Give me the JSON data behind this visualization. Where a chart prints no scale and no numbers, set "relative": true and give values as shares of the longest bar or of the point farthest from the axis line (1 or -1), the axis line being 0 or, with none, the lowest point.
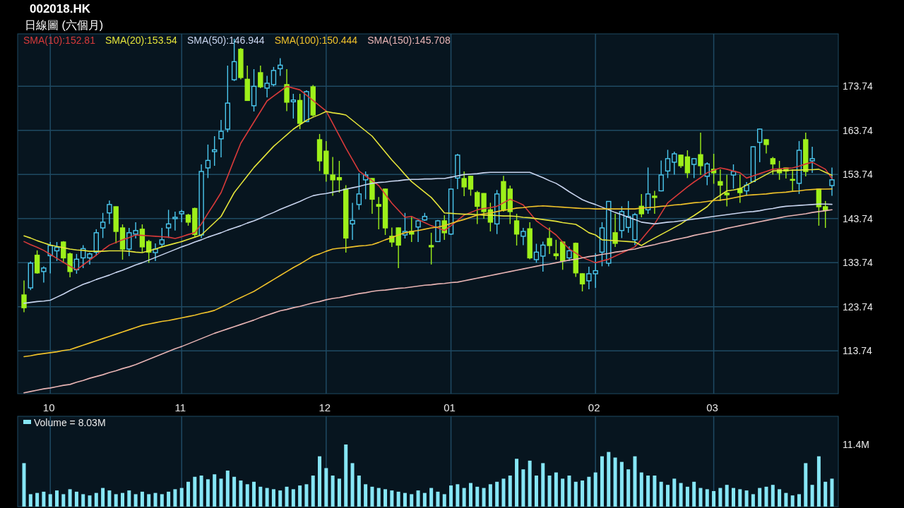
{
  "chart_data": [
    {
      "type": "candlestick",
      "title": "002018.HK",
      "subtitle": "日線圖 (六個月)",
      "categories": [
        null,
        null,
        null,
        null,
        "10",
        null,
        null,
        null,
        null,
        null,
        null,
        null,
        null,
        null,
        null,
        null,
        null,
        null,
        null,
        null,
        null,
        null,
        null,
        null,
        "11",
        null,
        null,
        null,
        null,
        null,
        null,
        null,
        null,
        null,
        null,
        null,
        null,
        null,
        null,
        null,
        null,
        null,
        null,
        null,
        null,
        null,
        "12",
        null,
        null,
        null,
        null,
        null,
        null,
        null,
        null,
        null,
        null,
        null,
        null,
        null,
        null,
        null,
        null,
        null,
        null,
        "01",
        null,
        null,
        null,
        null,
        null,
        null,
        null,
        null,
        null,
        null,
        null,
        null,
        null,
        null,
        null,
        null,
        null,
        null,
        null,
        null,
        null,
        "02",
        null,
        null,
        null,
        null,
        null,
        null,
        null,
        null,
        null,
        null,
        null,
        null,
        null,
        null,
        null,
        null,
        null,
        "03",
        null,
        null,
        null,
        null,
        null,
        null,
        null,
        null,
        null,
        null,
        null,
        null,
        null,
        null,
        null,
        null,
        null,
        null
      ],
      "ohlc": [
        [
          126.4,
          129.7,
          122.5,
          123.5
        ],
        [
          128,
          134,
          127.5,
          133.6
        ],
        [
          135.4,
          136.5,
          131.2,
          131.4
        ],
        [
          131.7,
          132.9,
          129.2,
          132.5
        ],
        [
          135.3,
          138.4,
          131.3,
          137.6
        ],
        [
          136.4,
          138.4,
          134.1,
          137.2
        ],
        [
          138.4,
          138.6,
          133.6,
          134.8
        ],
        [
          135.7,
          136,
          130.4,
          131.7
        ],
        [
          132.1,
          135.7,
          131.2,
          134.5
        ],
        [
          134.8,
          137.7,
          132.5,
          136.9
        ],
        [
          134.8,
          136,
          133.3,
          135.7
        ],
        [
          136.1,
          141.3,
          135.3,
          140.5
        ],
        [
          141.6,
          145,
          139.3,
          142.9
        ],
        [
          145,
          147.8,
          142.5,
          146.9
        ],
        [
          146.4,
          146.5,
          138.1,
          140.8
        ],
        [
          141.6,
          142.4,
          134.4,
          136.8
        ],
        [
          136.8,
          141.6,
          135.2,
          140.5
        ],
        [
          140.2,
          142.9,
          139.2,
          141
        ],
        [
          141.3,
          142.4,
          136.1,
          137.3
        ],
        [
          138.5,
          138.9,
          133.7,
          136.1
        ],
        [
          136,
          138.1,
          134.1,
          136.8
        ],
        [
          137.9,
          141.6,
          137.3,
          138.9
        ],
        [
          141.6,
          145.7,
          139.3,
          142.5
        ],
        [
          143.7,
          145.3,
          141,
          144
        ],
        [
          144.8,
          145.7,
          142.9,
          145.3
        ],
        [
          144.5,
          144.8,
          142.1,
          142.9
        ],
        [
          146,
          146.2,
          139.7,
          140.1
        ],
        [
          140,
          156,
          139.3,
          154.4
        ],
        [
          155.2,
          160.5,
          152.9,
          156.9
        ],
        [
          158.9,
          162.4,
          155.7,
          159.3
        ],
        [
          161.8,
          166.1,
          157.6,
          163.5
        ],
        [
          164,
          178.4,
          163.3,
          169.9
        ],
        [
          175.2,
          184.5,
          174.9,
          179.3
        ],
        [
          182.1,
          182.4,
          175.3,
          175.7
        ],
        [
          175.3,
          178.4,
          170.4,
          170.5
        ],
        [
          169.3,
          177.6,
          168,
          173.7
        ],
        [
          176.8,
          178.4,
          173.3,
          173.6
        ],
        [
          173.3,
          176.1,
          171.2,
          174.4
        ],
        [
          174.1,
          178.1,
          173.7,
          177.3
        ],
        [
          177.7,
          180.1,
          176.1,
          178.5
        ],
        [
          174.1,
          177.6,
          168.1,
          170.1
        ],
        [
          170.2,
          172,
          166.4,
          170.6
        ],
        [
          170.5,
          172,
          164,
          165.3
        ],
        [
          165.7,
          172.8,
          165.6,
          172.5
        ],
        [
          173.6,
          174,
          166.9,
          167.2
        ],
        [
          161.6,
          162.9,
          154.5,
          156.8
        ],
        [
          159,
          161.3,
          152.1,
          153.9
        ],
        [
          153.6,
          157.7,
          148.9,
          152.5
        ],
        [
          153,
          156.8,
          149.6,
          152.5
        ],
        [
          150.4,
          151.3,
          136,
          139.3
        ],
        [
          142.5,
          147.3,
          138.9,
          143.3
        ],
        [
          146.9,
          154,
          145.7,
          149.3
        ],
        [
          152.5,
          154.4,
          148.1,
          153.6
        ],
        [
          152.8,
          152.9,
          144.8,
          148.1
        ],
        [
          146.9,
          148.6,
          141.3,
          146.5
        ],
        [
          150.4,
          150.5,
          140,
          141.6
        ],
        [
          139.7,
          141.7,
          137.3,
          138.4
        ],
        [
          141.6,
          141.7,
          132.5,
          137.7
        ],
        [
          140,
          145,
          139.2,
          140.8
        ],
        [
          140.8,
          144.2,
          138.4,
          140.2
        ],
        [
          141.8,
          143.4,
          138.4,
          143.2
        ],
        [
          143.4,
          145,
          143.2,
          144.2
        ],
        [
          137.6,
          140.5,
          133.3,
          137.3
        ],
        [
          138.5,
          143.4,
          138.4,
          143.2
        ],
        [
          143.2,
          144.5,
          138.9,
          140.5
        ],
        [
          140.2,
          150.5,
          140,
          150.4
        ],
        [
          152.9,
          158.4,
          150.4,
          158.1
        ],
        [
          152.8,
          154.4,
          148.8,
          150.9
        ],
        [
          153.3,
          153.4,
          148.9,
          150.4
        ],
        [
          149.6,
          150,
          142.5,
          146.5
        ],
        [
          149.4,
          149.5,
          143.7,
          145.3
        ],
        [
          145.7,
          147.3,
          140.8,
          142.9
        ],
        [
          142.5,
          150.2,
          140.2,
          149.3
        ],
        [
          152.1,
          153.4,
          145.3,
          145.6
        ],
        [
          150.4,
          151.2,
          142.5,
          145.3
        ],
        [
          143.2,
          144.8,
          137.6,
          140.2
        ],
        [
          139.7,
          141.6,
          137.7,
          140.8
        ],
        [
          141.4,
          142.9,
          134.5,
          134.8
        ],
        [
          134.4,
          138,
          133.7,
          136.1
        ],
        [
          135.2,
          138.5,
          131.7,
          137.7
        ],
        [
          139.2,
          141.7,
          135.7,
          137.6
        ],
        [
          135.7,
          138.9,
          134.4,
          135.3
        ],
        [
          138.4,
          138.5,
          132.1,
          134.1
        ],
        [
          134.8,
          137.4,
          134.1,
          136.4
        ],
        [
          138.1,
          138.3,
          130.5,
          131.4
        ],
        [
          131.2,
          131.3,
          127.2,
          128.9
        ],
        [
          129.6,
          132.8,
          127.7,
          131.2
        ],
        [
          131.2,
          135.9,
          128,
          131.9
        ],
        [
          136.1,
          142.9,
          132.9,
          141.6
        ],
        [
          133.6,
          147.7,
          132.9,
          147.6
        ],
        [
          140.5,
          144.8,
          137.3,
          138.1
        ],
        [
          141,
          146.5,
          139.3,
          145.3
        ],
        [
          141.7,
          147.7,
          140.5,
          144.2
        ],
        [
          138.9,
          145,
          137.7,
          144.6
        ],
        [
          146.5,
          149.3,
          144,
          144.8
        ],
        [
          145.7,
          155.3,
          144.8,
          149.3
        ],
        [
          148.8,
          150,
          144.8,
          148.5
        ],
        [
          150,
          156.9,
          149.9,
          153.6
        ],
        [
          154.5,
          159.3,
          152.9,
          157.3
        ],
        [
          156.5,
          158.9,
          153.7,
          158.4
        ],
        [
          158.1,
          158.2,
          155.2,
          155.7
        ],
        [
          157.7,
          159.2,
          152.9,
          154.1
        ],
        [
          156,
          157.4,
          152.9,
          157.3
        ],
        [
          158.2,
          163.2,
          153.6,
          155.7
        ],
        [
          153.3,
          156.5,
          151.3,
          156.1
        ],
        [
          154.9,
          158.4,
          151.6,
          154.1
        ],
        [
          152.1,
          154.9,
          147.7,
          151.3
        ],
        [
          149.5,
          153.7,
          146.5,
          149.1
        ],
        [
          153.6,
          156,
          150.5,
          154.4
        ],
        [
          150.5,
          153.7,
          147.3,
          149.6
        ],
        [
          150,
          152,
          148.9,
          151.3
        ],
        [
          152.1,
          160.1,
          152,
          160
        ],
        [
          161,
          164.1,
          156.5,
          164
        ],
        [
          161.6,
          161.7,
          158.5,
          160.5
        ],
        [
          157.3,
          157.7,
          153.7,
          156.1
        ],
        [
          154.9,
          156.8,
          152.5,
          154.1
        ],
        [
          155.2,
          155.3,
          152.8,
          154.5
        ],
        [
          152.6,
          154.9,
          150,
          152.4
        ],
        [
          151.7,
          161.3,
          149.3,
          159.2
        ],
        [
          161.6,
          163.2,
          153.3,
          154.4
        ],
        [
          156.8,
          160,
          154.1,
          157.3
        ],
        [
          150.4,
          150.5,
          142.1,
          146.4
        ],
        [
          146.4,
          147.7,
          141.6,
          145.6
        ],
        [
          151.2,
          155.3,
          148.9,
          152.5
        ]
      ],
      "colors": [
        "#9ef01a",
        "#4cc9f0",
        "#9ef01a",
        "#4cc9f0",
        "#4cc9f0",
        "#4cc9f0",
        "#9ef01a",
        "#9ef01a",
        "#4cc9f0",
        "#4cc9f0",
        "#4cc9f0",
        "#4cc9f0",
        "#4cc9f0",
        "#4cc9f0",
        "#9ef01a",
        "#9ef01a",
        "#4cc9f0",
        "#4cc9f0",
        "#9ef01a",
        "#9ef01a",
        "#4cc9f0",
        "#4cc9f0",
        "#4cc9f0",
        "#4cc9f0",
        "#4cc9f0",
        "#9ef01a",
        "#9ef01a",
        "#4cc9f0",
        "#4cc9f0",
        "#4cc9f0",
        "#4cc9f0",
        "#4cc9f0",
        "#4cc9f0",
        "#9ef01a",
        "#9ef01a",
        "#4cc9f0",
        "#9ef01a",
        "#4cc9f0",
        "#4cc9f0",
        "#4cc9f0",
        "#9ef01a",
        "#4cc9f0",
        "#9ef01a",
        "#4cc9f0",
        "#9ef01a",
        "#9ef01a",
        "#9ef01a",
        "#9ef01a",
        "#9ef01a",
        "#9ef01a",
        "#4cc9f0",
        "#4cc9f0",
        "#4cc9f0",
        "#9ef01a",
        "#9ef01a",
        "#9ef01a",
        "#9ef01a",
        "#9ef01a",
        "#4cc9f0",
        "#9ef01a",
        "#4cc9f0",
        "#4cc9f0",
        "#9ef01a",
        "#4cc9f0",
        "#9ef01a",
        "#4cc9f0",
        "#4cc9f0",
        "#9ef01a",
        "#9ef01a",
        "#9ef01a",
        "#9ef01a",
        "#9ef01a",
        "#4cc9f0",
        "#9ef01a",
        "#9ef01a",
        "#9ef01a",
        "#4cc9f0",
        "#9ef01a",
        "#4cc9f0",
        "#4cc9f0",
        "#9ef01a",
        "#9ef01a",
        "#9ef01a",
        "#4cc9f0",
        "#9ef01a",
        "#9ef01a",
        "#4cc9f0",
        "#4cc9f0",
        "#4cc9f0",
        "#4cc9f0",
        "#9ef01a",
        "#4cc9f0",
        "#4cc9f0",
        "#4cc9f0",
        "#9ef01a",
        "#4cc9f0",
        "#9ef01a",
        "#4cc9f0",
        "#4cc9f0",
        "#4cc9f0",
        "#9ef01a",
        "#9ef01a",
        "#4cc9f0",
        "#9ef01a",
        "#4cc9f0",
        "#9ef01a",
        "#9ef01a",
        "#9ef01a",
        "#4cc9f0",
        "#9ef01a",
        "#4cc9f0",
        "#4cc9f0",
        "#4cc9f0",
        "#9ef01a",
        "#9ef01a",
        "#9ef01a",
        "#9ef01a",
        "#9ef01a",
        "#4cc9f0",
        "#9ef01a",
        "#4cc9f0",
        "#9ef01a",
        "#9ef01a",
        "#4cc9f0"
      ],
      "series": [
        {
          "name": "SMA(10):152.81",
          "type": "line",
          "color": "#d83a3a",
          "values": [
            138.5,
            137.8,
            137.2,
            136.5,
            135.6,
            134.7,
            133.8,
            132.9,
            132.1,
            133.2,
            134.3,
            135.4,
            136.6,
            137.7,
            138.3,
            138.9,
            139.4,
            140,
            139.9,
            139.8,
            139.7,
            139.6,
            139.5,
            139.2,
            139.6,
            140.1,
            140.5,
            142.5,
            144.9,
            147.2,
            149.6,
            153.3,
            157.1,
            160.8,
            163.2,
            165.6,
            168,
            170.4,
            171.5,
            172.6,
            173.7,
            173.3,
            172.9,
            171.7,
            170.5,
            169.3,
            168.1,
            165.3,
            162.5,
            159.7,
            157.1,
            154.5,
            153.4,
            152.3,
            151.2,
            149.2,
            147.2,
            145.6,
            144,
            144.2,
            143.5,
            142.8,
            142.1,
            141.6,
            141,
            142.1,
            143.3,
            144.5,
            145.1,
            145.7,
            146,
            146.2,
            146.5,
            147.3,
            148.1,
            147.5,
            146.8,
            145,
            143.2,
            142.1,
            141.1,
            140,
            138.4,
            136.8,
            135.9,
            134.9,
            134.3,
            133.7,
            134.1,
            134.5,
            135.2,
            135.9,
            136.6,
            137.3,
            139,
            140.8,
            142.5,
            144.9,
            147.3,
            148.5,
            149.7,
            150.9,
            152,
            153,
            154.1,
            154.7,
            155.2,
            154.9,
            154.5,
            154.1,
            152.9,
            153.4,
            153.9,
            154.4,
            154.9,
            155,
            155.1,
            155.2,
            155.6,
            156.1,
            156.5,
            155.7,
            154.9,
            152.81
          ]
        },
        {
          "name": "SMA(20):153.54",
          "type": "line",
          "color": "#e4e43a",
          "values": [
            139.8,
            139.3,
            138.7,
            138.2,
            137.7,
            137.4,
            137.1,
            136.8,
            136.6,
            136.5,
            136.3,
            136.3,
            136.3,
            136.4,
            136.4,
            136.4,
            136.3,
            136.1,
            136,
            136.4,
            136.8,
            137.3,
            137.7,
            138.1,
            138.5,
            139,
            139.5,
            140,
            141.4,
            142.8,
            144.2,
            146.9,
            149.6,
            151.5,
            153.4,
            155.3,
            156.9,
            158.5,
            160.1,
            161.4,
            162.7,
            164,
            165,
            166,
            166.7,
            167.3,
            168,
            167.7,
            167.5,
            167.2,
            166,
            164.8,
            163.6,
            162.4,
            160.6,
            158.8,
            157,
            155.4,
            153.7,
            152.1,
            150.9,
            149.7,
            148.5,
            146.8,
            145,
            144.9,
            144.8,
            144.7,
            144.7,
            144.6,
            144.5,
            144.5,
            144.4,
            144.3,
            144.3,
            144.2,
            144,
            143.9,
            143.7,
            143.5,
            143.3,
            143.1,
            142.8,
            142.6,
            142.4,
            141.5,
            140.5,
            140,
            138.9,
            138.8,
            138.7,
            138.6,
            138.5,
            138.4,
            137.6,
            138.5,
            139.3,
            140.1,
            140.9,
            141.7,
            142.5,
            143.5,
            144.4,
            145.4,
            146.4,
            148,
            149,
            150,
            150.2,
            150.5,
            151.3,
            152.1,
            152.9,
            153.7,
            154.5,
            154.6,
            154.6,
            154.7,
            154.7,
            154.8,
            154.8,
            154.9,
            154.2,
            153.54
          ]
        },
        {
          "name": "SMA(50):146.944",
          "type": "line",
          "color": "#c8d4ee",
          "values": [
            124.5,
            124.7,
            124.9,
            125,
            125.2,
            125.9,
            126.6,
            127.4,
            128.1,
            128.8,
            129.3,
            129.9,
            130.4,
            130.9,
            131.5,
            132,
            132.6,
            133.2,
            133.7,
            134.3,
            134.9,
            135.5,
            136.1,
            136.7,
            137.3,
            137.8,
            138.4,
            138.9,
            139.5,
            140,
            140.5,
            141.1,
            141.6,
            142.1,
            142.7,
            143.2,
            143.8,
            144.5,
            145.1,
            145.8,
            146.4,
            147,
            147.6,
            148.3,
            148.9,
            149.2,
            149.4,
            149.7,
            150,
            150.4,
            150.7,
            151,
            151.4,
            151.7,
            151.9,
            152,
            152.2,
            152.3,
            152.5,
            152.6,
            152.6,
            152.7,
            152.7,
            152.8,
            152.8,
            153.1,
            153.4,
            153.7,
            153.8,
            153.9,
            154.1,
            154.2,
            154.2,
            154.2,
            154.2,
            154.2,
            154.2,
            154.2,
            153.6,
            153,
            152.3,
            151.7,
            150.8,
            149.8,
            148.9,
            148,
            147.4,
            146.9,
            146.3,
            145.7,
            145.1,
            144.6,
            144,
            143.5,
            142.9,
            142.7,
            142.5,
            142.7,
            142.9,
            143,
            143.2,
            143.4,
            143.6,
            143.8,
            144,
            144.2,
            144.4,
            144.6,
            144.8,
            145,
            145.2,
            145.3,
            145.5,
            145.8,
            146,
            146.3,
            146.5,
            146.6,
            146.7,
            146.8,
            146.9,
            147,
            147,
            146.944
          ]
        },
        {
          "name": "SMA(100):150.444",
          "type": "line",
          "color": "#f0c22a",
          "values": [
            112.4,
            112.6,
            112.9,
            113.1,
            113.3,
            113.5,
            113.8,
            114,
            114.5,
            115,
            115.5,
            116,
            116.5,
            117,
            117.5,
            118,
            118.5,
            119,
            119.5,
            119.8,
            120.1,
            120.4,
            120.6,
            120.9,
            121.2,
            121.5,
            121.8,
            122.2,
            122.5,
            122.9,
            123.6,
            124.3,
            125.1,
            125.8,
            126.5,
            127.2,
            128.1,
            129,
            129.9,
            130.8,
            131.7,
            132.6,
            133.4,
            134.3,
            135.2,
            135.7,
            136.3,
            136.8,
            137,
            137.1,
            137.3,
            137.5,
            137.6,
            137.8,
            138.3,
            138.9,
            139.4,
            140,
            140.5,
            140.8,
            141,
            141.3,
            141.6,
            141.8,
            142.1,
            142.6,
            143.1,
            143.5,
            144,
            144.5,
            144.8,
            145,
            145.3,
            145.6,
            145.8,
            146.1,
            146.2,
            146.4,
            146.5,
            146.6,
            146.5,
            146.4,
            146.3,
            146.2,
            146.1,
            146,
            146,
            145.9,
            145.9,
            145.9,
            145.9,
            145.9,
            145.9,
            145.9,
            146.1,
            146.2,
            146.3,
            146.5,
            146.6,
            146.8,
            146.9,
            147.1,
            147.3,
            147.4,
            147.6,
            147.8,
            147.9,
            148.1,
            148.4,
            148.7,
            149,
            149.1,
            149.2,
            149.3,
            149.5,
            149.6,
            149.7,
            149.9,
            150,
            150.2,
            150.3,
            150.4,
            150.4,
            150.444
          ]
        },
        {
          "name": "SMA(150):145.708",
          "type": "line",
          "color": "#e8b4b4",
          "values": [
            104.2,
            104.5,
            104.8,
            105.1,
            105.3,
            105.6,
            105.9,
            106.1,
            106.6,
            107,
            107.5,
            107.9,
            108.3,
            108.8,
            109.2,
            109.7,
            110.1,
            110.6,
            111.2,
            111.8,
            112.4,
            113,
            113.6,
            114.2,
            114.7,
            115.3,
            115.9,
            116.5,
            117.1,
            117.7,
            118.2,
            118.7,
            119.2,
            119.7,
            120.2,
            120.7,
            121.3,
            121.8,
            122.3,
            122.8,
            123.1,
            123.5,
            123.8,
            124.2,
            124.6,
            124.9,
            125.3,
            125.6,
            125.8,
            126.1,
            126.4,
            126.7,
            126.9,
            127.2,
            127.4,
            127.5,
            127.7,
            127.9,
            128,
            128.2,
            128.4,
            128.6,
            128.7,
            128.9,
            129,
            129.2,
            129.3,
            129.6,
            129.9,
            130.2,
            130.5,
            130.8,
            131.1,
            131.4,
            131.7,
            132,
            132.3,
            132.6,
            132.9,
            133.2,
            133.4,
            133.7,
            134,
            134.3,
            134.5,
            134.8,
            135.1,
            135.3,
            135.6,
            135.8,
            136.1,
            136.3,
            136.6,
            136.8,
            137.2,
            137.5,
            137.8,
            138.2,
            138.5,
            138.9,
            139.2,
            139.5,
            139.9,
            140.2,
            140.5,
            140.8,
            141.1,
            141.5,
            141.8,
            142.1,
            142.4,
            142.7,
            143,
            143.3,
            143.6,
            143.9,
            144.2,
            144.4,
            144.6,
            144.8,
            145.1,
            145.3,
            145.5,
            145.708
          ]
        }
      ],
      "ylim": [
        104,
        185.6
      ],
      "yticks": [
        113.74,
        123.74,
        133.74,
        143.74,
        153.74,
        163.74,
        173.74
      ],
      "grid": true,
      "legend": "top left"
    },
    {
      "type": "bar",
      "relative": true,
      "tick_labels": false,
      "grid": "x",
      "legend": "top left",
      "annotations": [
        "11.4M"
      ],
      "categories": [
        null,
        null,
        null,
        null,
        "10",
        null,
        null,
        null,
        null,
        null,
        null,
        null,
        null,
        null,
        null,
        null,
        null,
        null,
        null,
        null,
        null,
        null,
        null,
        null,
        "11",
        null,
        null,
        null,
        null,
        null,
        null,
        null,
        null,
        null,
        null,
        null,
        null,
        null,
        null,
        null,
        null,
        null,
        null,
        null,
        null,
        null,
        "12",
        null,
        null,
        null,
        null,
        null,
        null,
        null,
        null,
        null,
        null,
        null,
        null,
        null,
        null,
        null,
        null,
        null,
        null,
        "01",
        null,
        null,
        null,
        null,
        null,
        null,
        null,
        null,
        null,
        null,
        null,
        null,
        null,
        null,
        null,
        null,
        null,
        null,
        null,
        null,
        null,
        "02",
        null,
        null,
        null,
        null,
        null,
        null,
        null,
        null,
        null,
        null,
        null,
        null,
        null,
        null,
        null,
        null,
        null,
        "03",
        null,
        null,
        null,
        null,
        null,
        null,
        null,
        null,
        null,
        null,
        null,
        null,
        null,
        null,
        null,
        null,
        null,
        null
      ],
      "series": [
        {
          "name": "Volume  = 8.03M",
          "color": "#86e6f6",
          "values": [
            0.7,
            0.2,
            0.22,
            0.24,
            0.2,
            0.26,
            0.2,
            0.28,
            0.24,
            0.2,
            0.18,
            0.22,
            0.3,
            0.26,
            0.2,
            0.22,
            0.26,
            0.2,
            0.24,
            0.2,
            0.22,
            0.2,
            0.24,
            0.28,
            0.3,
            0.4,
            0.48,
            0.5,
            0.44,
            0.52,
            0.45,
            0.58,
            0.48,
            0.42,
            0.36,
            0.4,
            0.32,
            0.3,
            0.28,
            0.26,
            0.32,
            0.28,
            0.34,
            0.36,
            0.5,
            0.81,
            0.62,
            0.5,
            0.45,
            1,
            0.7,
            0.5,
            0.36,
            0.32,
            0.3,
            0.28,
            0.26,
            0.24,
            0.22,
            0.2,
            0.26,
            0.22,
            0.3,
            0.24,
            0.2,
            0.34,
            0.36,
            0.3,
            0.38,
            0.32,
            0.3,
            0.36,
            0.4,
            0.45,
            0.5,
            0.77,
            0.6,
            0.74,
            0.5,
            0.7,
            0.5,
            0.55,
            0.45,
            0.5,
            0.4,
            0.42,
            0.48,
            0.55,
            0.81,
            0.88,
            0.79,
            0.72,
            0.6,
            0.81,
            0.55,
            0.5,
            0.5,
            0.4,
            0.35,
            0.45,
            0.38,
            0.32,
            0.4,
            0.3,
            0.28,
            0.25,
            0.3,
            0.35,
            0.3,
            0.28,
            0.26,
            0.2,
            0.3,
            0.32,
            0.35,
            0.28,
            0.22,
            0.18,
            0.2,
            0.7,
            0.35,
            0.81,
            0.4,
            0.45
          ]
        }
      ]
    }
  ]
}
